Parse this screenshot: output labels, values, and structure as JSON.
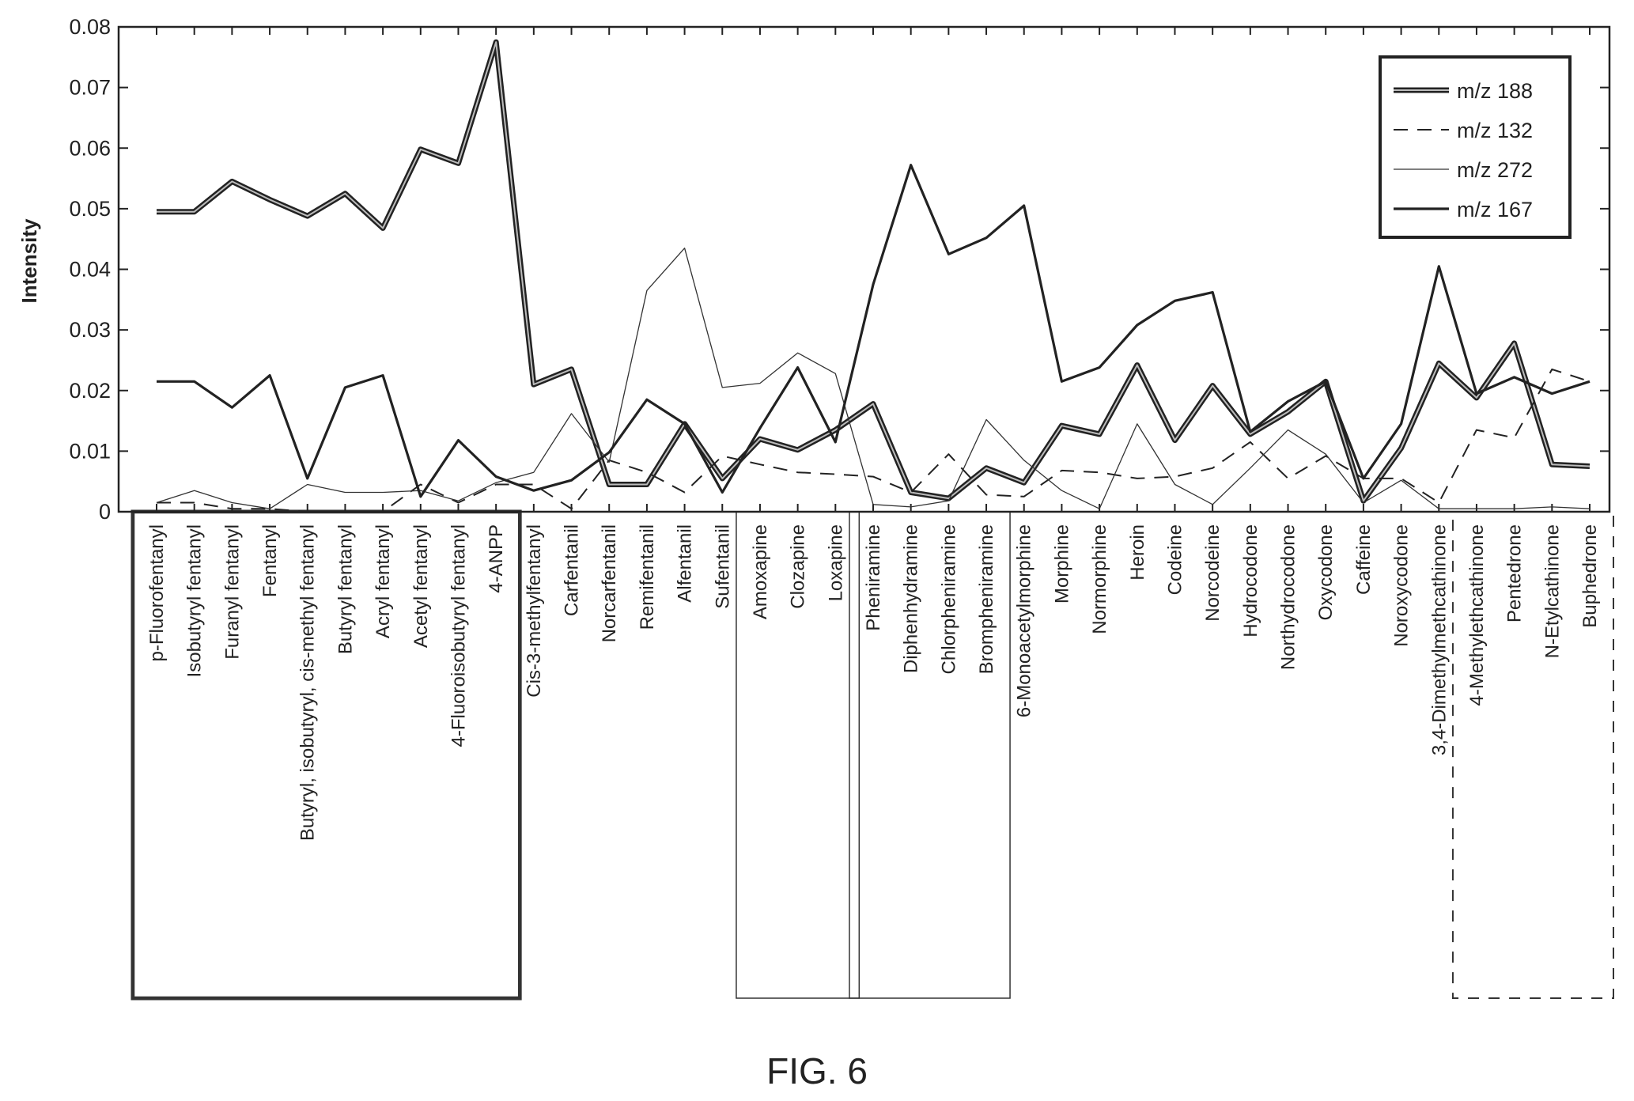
{
  "figure": {
    "caption": "FIG. 6"
  },
  "chart_data": {
    "type": "line",
    "title": "",
    "xlabel": "",
    "ylabel": "Intensity",
    "ylim": [
      0,
      0.08
    ],
    "yticks": [
      0,
      0.01,
      0.02,
      0.03,
      0.04,
      0.05,
      0.06,
      0.07,
      0.08
    ],
    "ytick_labels": [
      "0",
      "0.01",
      "0.02",
      "0.03",
      "0.04",
      "0.05",
      "0.06",
      "0.07",
      "0.08"
    ],
    "grid": false,
    "legend_position": "top-right",
    "categories": [
      "p-Fluorofentanyl",
      "Isobutyryl fentanyl",
      "Furanyl fentanyl",
      "Fentanyl",
      "Butyryl, isobutyryl, cis-methyl fentanyl",
      "Butyryl fentanyl",
      "Acryl fentanyl",
      "Acetyl fentanyl",
      "4-Fluoroisobutyryl fentanyl",
      "4-ANPP",
      "Cis-3-methylfentanyl",
      "Carfentanil",
      "Norcarfentanil",
      "Remifentanil",
      "Alfentanil",
      "Sufentanil",
      "Amoxapine",
      "Clozapine",
      "Loxapine",
      "Pheniramine",
      "Diphenhydramine",
      "Chlorpheniramine",
      "Brompheniramine",
      "6-Monoacetylmorphine",
      "Morphine",
      "Normorphine",
      "Heroin",
      "Codeine",
      "Norcodeine",
      "Hydrocodone",
      "Northydrocodone",
      "Oxycodone",
      "Caffeine",
      "Noroxycodone",
      "3,4-Dimethylmethcathinone",
      "4-Methylethcathinone",
      "Pentedrone",
      "N-Etylcathinone",
      "Buphedrone"
    ],
    "series": [
      {
        "name": "m/z 188",
        "style": "thick-double",
        "values": [
          0.0495,
          0.0495,
          0.0545,
          0.0515,
          0.0488,
          0.0525,
          0.0468,
          0.0598,
          0.0575,
          0.0775,
          0.021,
          0.0235,
          0.0045,
          0.0045,
          0.0145,
          0.0055,
          0.012,
          0.0102,
          0.0135,
          0.0178,
          0.0032,
          0.0022,
          0.0072,
          0.0048,
          0.0142,
          0.0128,
          0.0242,
          0.0118,
          0.0208,
          0.0128,
          0.0165,
          0.0215,
          0.0018,
          0.0105,
          0.0245,
          0.0188,
          0.0278,
          0.0078,
          0.0075
        ]
      },
      {
        "name": "m/z 132",
        "style": "dashed",
        "values": [
          0.0015,
          0.0015,
          0.0005,
          0.0005,
          0.0,
          0.0,
          0.0,
          0.0045,
          0.0015,
          0.0045,
          0.0045,
          0.0005,
          0.0085,
          0.0065,
          0.0032,
          0.0092,
          0.0078,
          0.0065,
          0.0062,
          0.0058,
          0.0032,
          0.0095,
          0.0028,
          0.0025,
          0.0068,
          0.0065,
          0.0055,
          0.0058,
          0.0072,
          0.0115,
          0.0055,
          0.0092,
          0.0055,
          0.0055,
          0.0015,
          0.0135,
          0.0122,
          0.0235,
          0.0215
        ]
      },
      {
        "name": "m/z 272",
        "style": "thin",
        "values": [
          0.0015,
          0.0035,
          0.0015,
          0.0005,
          0.0045,
          0.0032,
          0.0032,
          0.0035,
          0.0018,
          0.0048,
          0.0065,
          0.0162,
          0.0082,
          0.0365,
          0.0435,
          0.0205,
          0.0212,
          0.0262,
          0.0228,
          0.0012,
          0.0008,
          0.0018,
          0.0152,
          0.0085,
          0.0035,
          0.0005,
          0.0145,
          0.0045,
          0.0012,
          0.0072,
          0.0135,
          0.0095,
          0.0015,
          0.0052,
          0.0005,
          0.0005,
          0.0005,
          0.0008,
          0.0005
        ]
      },
      {
        "name": "m/z 167",
        "style": "medium",
        "values": [
          0.0215,
          0.0215,
          0.0172,
          0.0225,
          0.0055,
          0.0205,
          0.0225,
          0.0025,
          0.0118,
          0.0058,
          0.0035,
          0.0052,
          0.0098,
          0.0185,
          0.0145,
          0.0032,
          0.0138,
          0.0238,
          0.0115,
          0.0375,
          0.0572,
          0.0425,
          0.0452,
          0.0505,
          0.0215,
          0.0238,
          0.0308,
          0.0348,
          0.0362,
          0.0132,
          0.0182,
          0.0215,
          0.0055,
          0.0145,
          0.0405,
          0.0195,
          0.0222,
          0.0195,
          0.0215
        ]
      }
    ],
    "group_boxes": [
      {
        "from": "p-Fluorofentanyl",
        "to": "4-ANPP",
        "style": "double"
      },
      {
        "from": "Amoxapine",
        "to": "Loxapine",
        "style": "solid"
      },
      {
        "from": "Pheniramine",
        "to": "Brompheniramine",
        "style": "solid"
      },
      {
        "from": "4-Methylethcathinone",
        "to": "Buphedrone",
        "style": "dashed"
      }
    ]
  }
}
